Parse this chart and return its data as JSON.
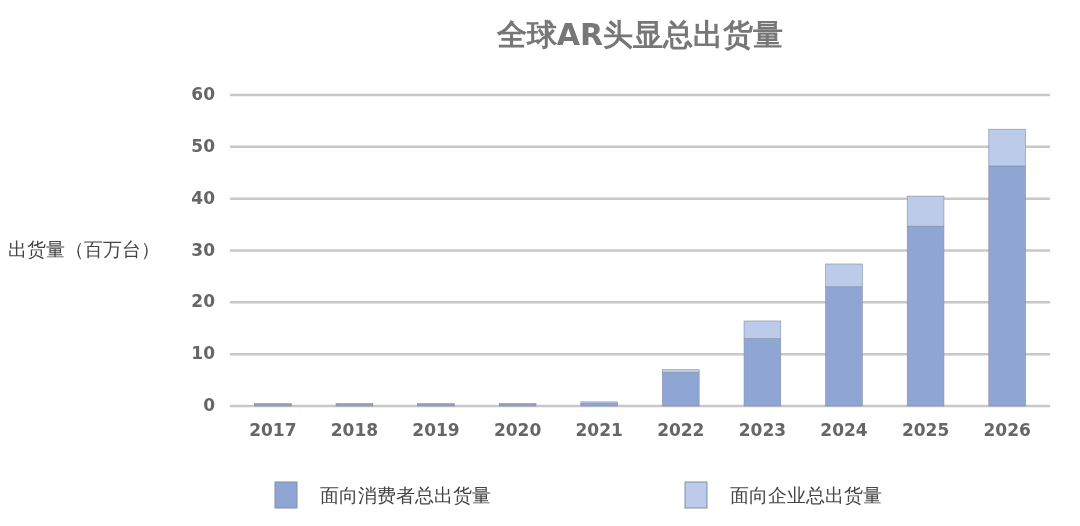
{
  "chart_data": {
    "type": "bar",
    "title": "全球AR头显总出货量",
    "ylabel": "出货量（百万台）",
    "categories": [
      "2017",
      "2018",
      "2019",
      "2020",
      "2021",
      "2022",
      "2023",
      "2024",
      "2025",
      "2026"
    ],
    "stacked": true,
    "series": [
      {
        "name": "面向消费者总出货量",
        "color": "#8fa6d4",
        "values": [
          0.3,
          0.3,
          0.3,
          0.3,
          0.5,
          6.5,
          13,
          23,
          34.7,
          46.3
        ]
      },
      {
        "name": "面向企业总出货量",
        "color": "#bccbea",
        "values": [
          0.2,
          0.2,
          0.2,
          0.2,
          0.3,
          0.5,
          3.4,
          4.4,
          5.8,
          7.1
        ]
      }
    ],
    "ylim": [
      0,
      60
    ],
    "yticks": [
      0,
      10,
      20,
      30,
      40,
      50,
      60
    ],
    "grid": "y",
    "legend": "bottom"
  }
}
